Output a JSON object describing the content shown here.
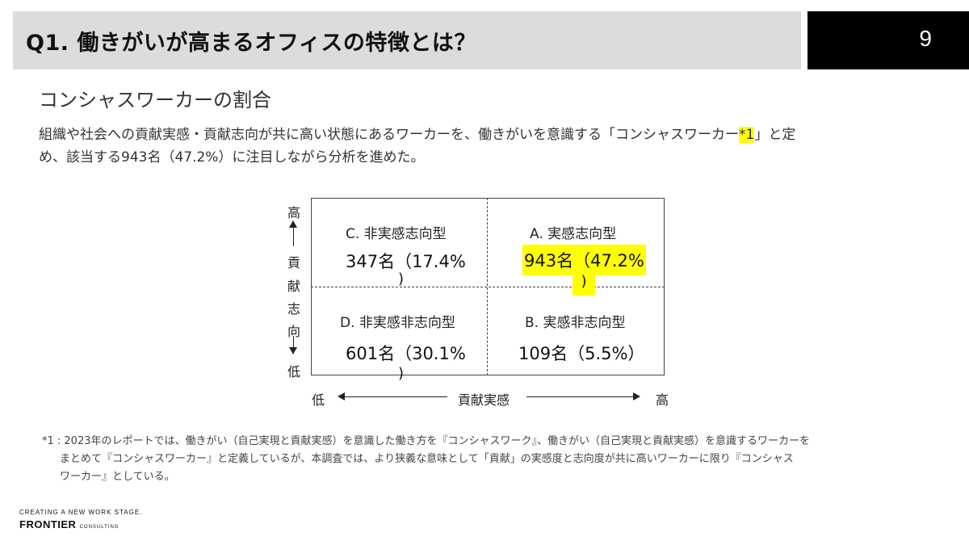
{
  "header": {
    "title": "Q1. 働きがいが高まるオフィスの特徴とは？",
    "page_number": "9"
  },
  "subtitle": "コンシャスワーカーの割合",
  "intro": {
    "line1_before": "組織や社会への貢献実感・貢献志向が共に高い状態にあるワーカーを、働きがいを意識する「コンシャスワーカー",
    "line1_mark": "*1",
    "line1_after": "」と定",
    "line2": "め、該当する943名（47.2%）に注目しながら分析を進めた。"
  },
  "matrix": {
    "y_axis": {
      "high": "高",
      "label_chars": [
        "貢",
        "献",
        "志",
        "向"
      ],
      "low": "低"
    },
    "x_axis": {
      "low": "低",
      "label": "貢献実感",
      "high": "高"
    },
    "quadrants": {
      "top_left": {
        "label": "C. 非実感志向型",
        "value": "347名（17.4%",
        "tail": ")"
      },
      "top_right": {
        "label": "A. 実感志向型",
        "value": "943名（47.2%",
        "tail": ")",
        "highlight_color": "#ffff00"
      },
      "bottom_left": {
        "label": "D. 非実感非志向型",
        "value": "601名（30.1%",
        "tail": ")"
      },
      "bottom_right": {
        "label": "B. 実感非志向型",
        "value": "109名（5.5%）"
      }
    }
  },
  "footnote": {
    "line1": "*1 : 2023年のレポートでは、働きがい（自己実現と貢献実感）を意識した働き方を『コンシャスワーク』、働きがい（自己実現と貢献実感）を意識するワーカーを",
    "line2": "まとめて『コンシャスワーカー』と定義しているが、本調査では、より狭義な意味として「貢献」の実感度と志向度が共に高いワーカーに限り『コンシャス",
    "line3": "ワーカー』としている。"
  },
  "logo": {
    "tagline": "CREATING A NEW WORK STAGE.",
    "name": "FRONTIER",
    "suffix": "CONSULTING"
  },
  "colors": {
    "title_band": "#dcdcdc",
    "page_box": "#000000",
    "highlight": "#ffff00"
  }
}
